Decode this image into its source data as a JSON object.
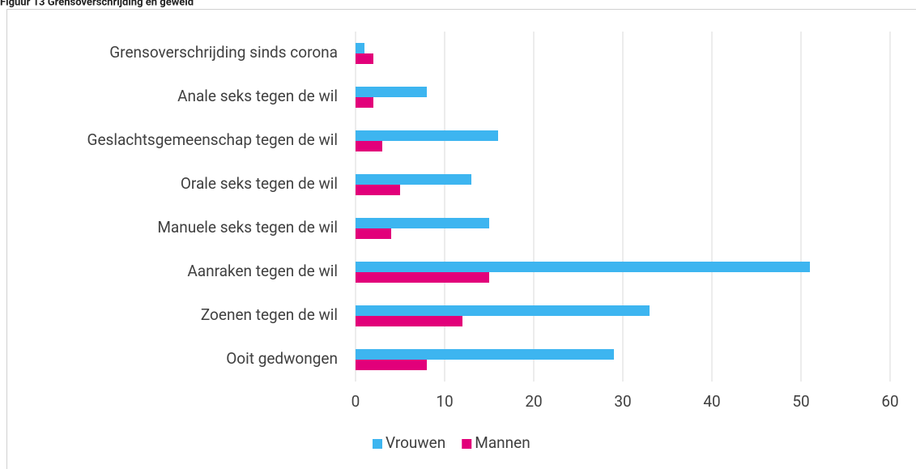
{
  "chart_data": {
    "type": "bar",
    "orientation": "horizontal",
    "title": "Figuur 13 Grensoverschrijding en geweld",
    "categories": [
      "Grensoverschrijding sinds corona",
      "Anale seks tegen de wil",
      "Geslachtsgemeenschap tegen de wil",
      "Orale seks tegen de wil",
      "Manuele seks tegen de wil",
      "Aanraken tegen de wil",
      "Zoenen tegen de wil",
      "Ooit gedwongen"
    ],
    "series": [
      {
        "name": "Vrouwen",
        "color": "#3db5f0",
        "values": [
          1,
          8,
          16,
          13,
          15,
          51,
          33,
          29
        ]
      },
      {
        "name": "Mannen",
        "color": "#e2007a",
        "values": [
          2,
          2,
          3,
          5,
          4,
          15,
          12,
          8
        ]
      }
    ],
    "xlim": [
      0,
      60
    ],
    "xticks": [
      0,
      10,
      20,
      30,
      40,
      50,
      60
    ],
    "grid": true,
    "legend": "bottom"
  }
}
